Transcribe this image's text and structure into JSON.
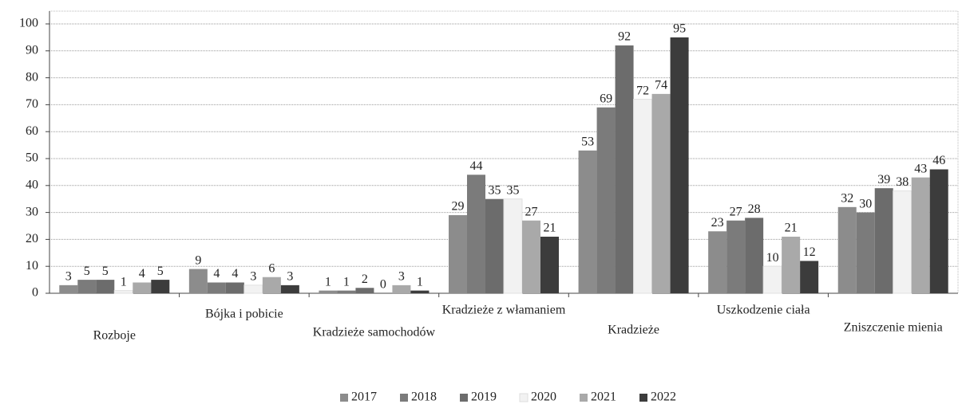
{
  "chart_data": {
    "type": "bar",
    "categories": [
      "Rozboje",
      "Bójka i pobicie",
      "Kradzieże samochodów",
      "Kradzieże z włamaniem",
      "Kradzieże",
      "Uszkodzenie ciała",
      "Zniszczenie mienia"
    ],
    "series": [
      {
        "name": "2017",
        "color": "#8c8c8c",
        "values": [
          3,
          9,
          1,
          29,
          53,
          23,
          32
        ]
      },
      {
        "name": "2018",
        "color": "#7b7b7b",
        "values": [
          5,
          4,
          1,
          44,
          69,
          27,
          30
        ]
      },
      {
        "name": "2019",
        "color": "#6c6c6c",
        "values": [
          5,
          4,
          2,
          35,
          92,
          28,
          39
        ]
      },
      {
        "name": "2020",
        "color": "#f2f2f2",
        "values": [
          1,
          3,
          0,
          35,
          72,
          10,
          38
        ]
      },
      {
        "name": "2021",
        "color": "#a9a9a9",
        "values": [
          4,
          6,
          3,
          27,
          74,
          21,
          43
        ]
      },
      {
        "name": "2022",
        "color": "#3c3c3c",
        "values": [
          5,
          3,
          1,
          21,
          95,
          12,
          46
        ]
      }
    ],
    "ylim": [
      0,
      100
    ],
    "yticks": [
      0,
      10,
      20,
      30,
      40,
      50,
      60,
      70,
      80,
      90,
      100
    ],
    "grid": true,
    "legend": "bottom"
  }
}
